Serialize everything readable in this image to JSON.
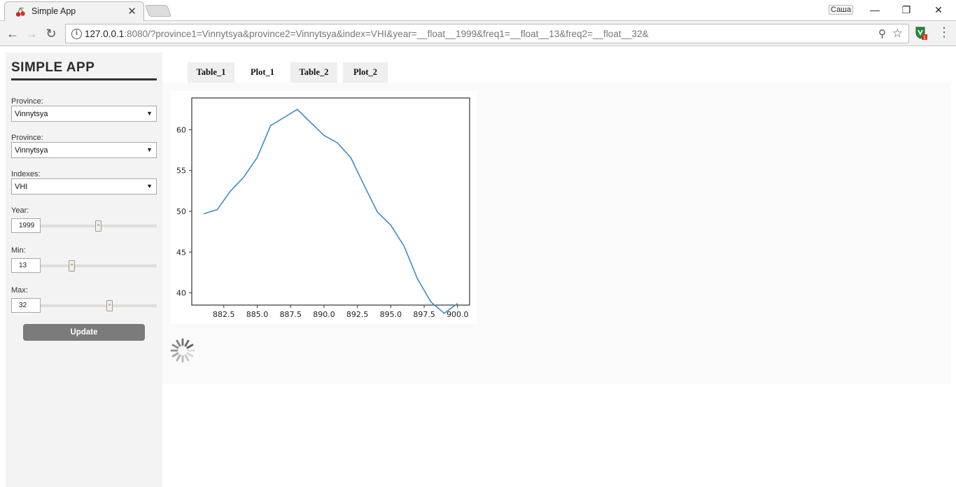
{
  "browser": {
    "tab_title": "Simple App",
    "user_label": "Саша",
    "url_host": "127.0.0.1",
    "url_rest": ":8080/?province1=Vinnytsya&province2=Vinnytsya&index=VHI&year=__float__1999&freq1=__float__13&freq2=__float__32&",
    "extension_badge": "1"
  },
  "sidebar": {
    "title": "SIMPLE APP",
    "province1_label": "Province:",
    "province1_value": "Vinnytsya",
    "province2_label": "Province:",
    "province2_value": "Vinnytsya",
    "indexes_label": "Indexes:",
    "indexes_value": "VHI",
    "year_label": "Year:",
    "year_value": "1999",
    "min_label": "Min:",
    "min_value": "13",
    "max_label": "Max:",
    "max_value": "32",
    "update_label": "Update"
  },
  "tabs": [
    {
      "label": "Table_1",
      "active": false
    },
    {
      "label": "Plot_1",
      "active": true
    },
    {
      "label": "Table_2",
      "active": false
    },
    {
      "label": "Plot_2",
      "active": false
    }
  ],
  "chart_data": {
    "type": "line",
    "title": "",
    "xlabel": "",
    "ylabel": "",
    "xlim": [
      880.1,
      900.9
    ],
    "ylim": [
      38.5,
      63.9
    ],
    "xticks": [
      "882.5",
      "885.0",
      "887.5",
      "890.0",
      "892.5",
      "895.0",
      "897.5",
      "900.0"
    ],
    "yticks": [
      "40",
      "45",
      "50",
      "55",
      "60"
    ],
    "grid": false,
    "legend": "none",
    "color": "#3a8ecb",
    "series": [
      {
        "x": [
          881,
          882,
          883,
          884,
          885,
          886,
          887,
          888,
          889,
          890,
          891,
          892,
          893,
          894,
          895,
          896,
          897,
          898,
          899,
          900
        ],
        "values": [
          49.7,
          50.2,
          52.5,
          54.2,
          56.6,
          60.5,
          61.5,
          62.5,
          60.9,
          59.3,
          58.4,
          56.6,
          53.2,
          49.9,
          48.3,
          45.7,
          41.7,
          38.9,
          37.5,
          38.7
        ]
      }
    ]
  }
}
